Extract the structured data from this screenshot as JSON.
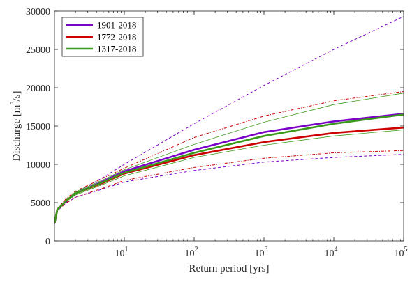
{
  "chart_data": {
    "type": "line",
    "xscale": "log",
    "xlabel": "Return period [yrs]",
    "ylabel": "Discharge [m",
    "ylabel_sup": "3",
    "ylabel_tail": "/s]",
    "xlim": [
      1,
      100000
    ],
    "ylim": [
      0,
      30000
    ],
    "grid": false,
    "legend_position": "top-left",
    "xticks": [
      {
        "value": 10,
        "base": "10",
        "exp": "1"
      },
      {
        "value": 100,
        "base": "10",
        "exp": "2"
      },
      {
        "value": 1000,
        "base": "10",
        "exp": "3"
      },
      {
        "value": 10000,
        "base": "10",
        "exp": "4"
      },
      {
        "value": 100000,
        "base": "10",
        "exp": "5"
      }
    ],
    "yticks": [
      {
        "value": 0,
        "label": "0"
      },
      {
        "value": 5000,
        "label": "5000"
      },
      {
        "value": 10000,
        "label": "10000"
      },
      {
        "value": 15000,
        "label": "15000"
      },
      {
        "value": 20000,
        "label": "20000"
      },
      {
        "value": 25000,
        "label": "25000"
      },
      {
        "value": 30000,
        "label": "30000"
      }
    ],
    "x": [
      1.01,
      1.1,
      1.5,
      2,
      5,
      10,
      100,
      1000,
      10000,
      100000
    ],
    "series": [
      {
        "name": "1901-2018",
        "color": "#7b00c8",
        "style": "solid",
        "legend": true,
        "values": [
          2400,
          4100,
          5300,
          6200,
          7800,
          9100,
          11900,
          14200,
          15600,
          16600
        ]
      },
      {
        "name": "1772-2018",
        "color": "#cc0000",
        "style": "solid",
        "legend": true,
        "values": [
          2400,
          4100,
          5300,
          6200,
          7600,
          8800,
          11200,
          12900,
          14100,
          14800
        ]
      },
      {
        "name": "1317-2018",
        "color": "#3a9a1a",
        "style": "solid",
        "legend": true,
        "values": [
          2400,
          4100,
          5300,
          6200,
          7700,
          8900,
          11500,
          13700,
          15300,
          16500
        ]
      },
      {
        "color": "#7b00c8",
        "style": "dashed",
        "legend": false,
        "values": [
          2300,
          3900,
          5100,
          6300,
          8300,
          10000,
          15300,
          20300,
          25000,
          29300
        ]
      },
      {
        "color": "#7b00c8",
        "style": "dashed",
        "legend": false,
        "values": [
          2400,
          4000,
          5000,
          5700,
          6800,
          7700,
          9200,
          10300,
          10900,
          11300
        ]
      },
      {
        "color": "#cc0000",
        "style": "dashdot",
        "legend": false,
        "values": [
          2400,
          4200,
          5600,
          6500,
          8200,
          9500,
          13500,
          16300,
          18300,
          19500
        ]
      },
      {
        "color": "#cc0000",
        "style": "dashdot",
        "legend": false,
        "values": [
          2400,
          4000,
          5000,
          5700,
          6900,
          7900,
          9600,
          10800,
          11500,
          11800
        ]
      },
      {
        "color": "#3a9a1a",
        "style": "thin",
        "legend": false,
        "values": [
          2400,
          4100,
          5400,
          6400,
          8000,
          9300,
          12600,
          15500,
          17800,
          19300
        ]
      },
      {
        "color": "#3a9a1a",
        "style": "thin",
        "legend": false,
        "values": [
          2400,
          4100,
          5200,
          6000,
          7400,
          8500,
          10900,
          12500,
          13700,
          14500
        ]
      }
    ]
  }
}
